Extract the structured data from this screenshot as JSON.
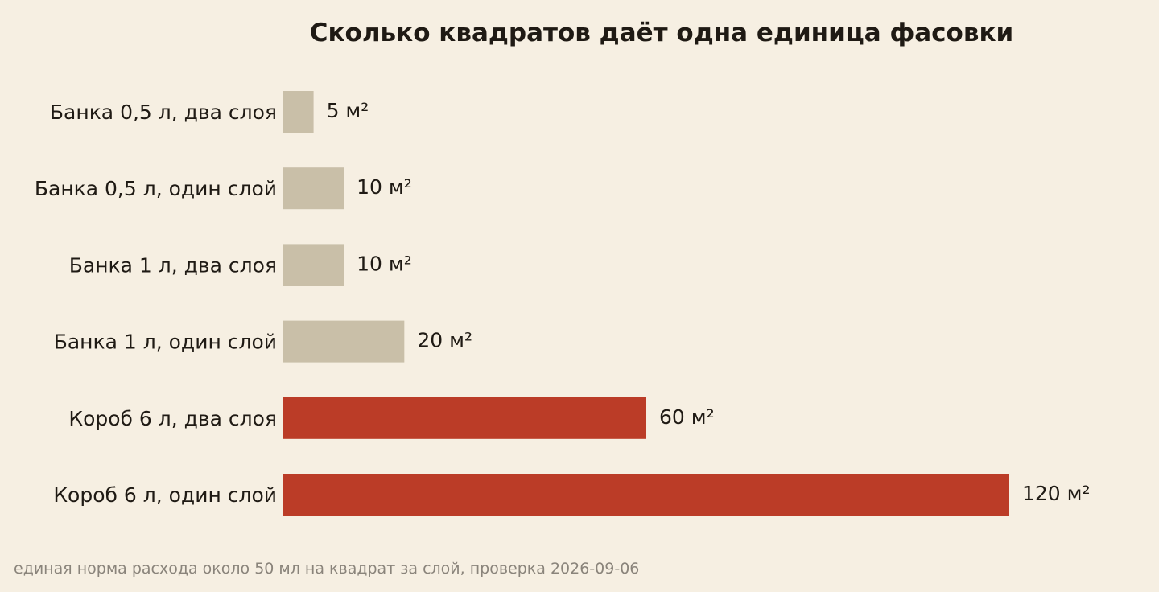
{
  "chart_data": {
    "type": "bar",
    "orientation": "horizontal",
    "title": "Сколько квадратов даёт одна единица фасовки",
    "categories": [
      "Банка 0,5 л, два слоя",
      "Банка 0,5 л, один слой",
      "Банка 1 л, два слоя",
      "Банка 1 л, один слой",
      "Короб 6 л, два слоя",
      "Короб 6 л, один слой"
    ],
    "values": [
      5,
      10,
      10,
      20,
      60,
      120
    ],
    "value_labels": [
      "5 м²",
      "10 м²",
      "10 м²",
      "20 м²",
      "60 м²",
      "120 м²"
    ],
    "bar_colors": [
      "#c9bfa8",
      "#c9bfa8",
      "#c9bfa8",
      "#c9bfa8",
      "#bb3c27",
      "#bb3c27"
    ],
    "xlim": [
      0,
      120
    ],
    "grid": false,
    "axes_visible": false
  },
  "footnote": "единая норма расхода около 50 мл на квадрат за слой, проверка 2026-09-06"
}
